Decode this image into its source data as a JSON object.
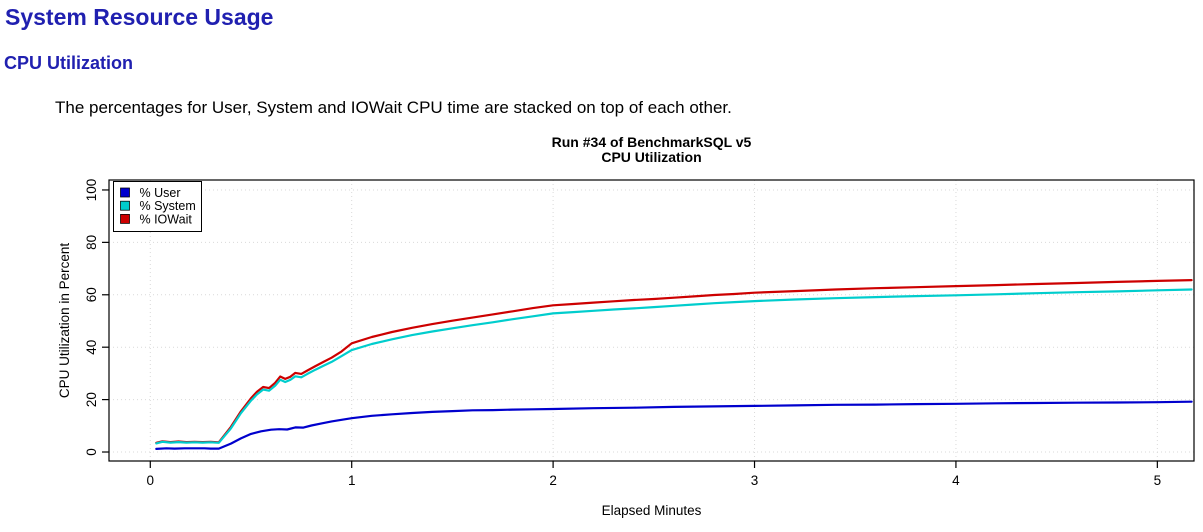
{
  "page": {
    "heading1": "System Resource Usage",
    "heading2": "CPU Utilization",
    "description": "The percentages for User, System and IOWait CPU time are stacked on top of each other.",
    "heading_color": "#2020b0"
  },
  "chart_data": {
    "type": "line",
    "title": "Run #34 of BenchmarkSQL v5",
    "subtitle": "CPU Utilization",
    "xlabel": "Elapsed Minutes",
    "ylabel": "CPU Utilization in Percent",
    "x_ticks": [
      0,
      1,
      2,
      3,
      4,
      5
    ],
    "y_ticks": [
      0,
      20,
      40,
      60,
      80,
      100
    ],
    "xlim": [
      -0.205,
      5.182
    ],
    "ylim": [
      -3.43,
      103.8
    ],
    "grid": {
      "show": true,
      "style": "dotted",
      "color": "#d9d9d9"
    },
    "axis_color": "#000000",
    "legend": {
      "position": "top-left",
      "entries": [
        {
          "label": "% User",
          "color": "#0000CD"
        },
        {
          "label": "% System",
          "color": "#00CDCD"
        },
        {
          "label": "% IOWait",
          "color": "#CD0000"
        }
      ]
    },
    "series": [
      {
        "name": "% User",
        "color": "#0000CD",
        "points": [
          [
            0.03,
            1.2
          ],
          [
            0.08,
            1.4
          ],
          [
            0.12,
            1.3
          ],
          [
            0.17,
            1.4
          ],
          [
            0.22,
            1.4
          ],
          [
            0.27,
            1.4
          ],
          [
            0.3,
            1.3
          ],
          [
            0.34,
            1.3
          ],
          [
            0.4,
            3.2
          ],
          [
            0.45,
            5.2
          ],
          [
            0.5,
            6.9
          ],
          [
            0.55,
            7.9
          ],
          [
            0.6,
            8.5
          ],
          [
            0.64,
            8.7
          ],
          [
            0.68,
            8.6
          ],
          [
            0.72,
            9.4
          ],
          [
            0.76,
            9.3
          ],
          [
            0.8,
            10.1
          ],
          [
            0.85,
            10.9
          ],
          [
            0.9,
            11.7
          ],
          [
            0.95,
            12.3
          ],
          [
            1.0,
            12.9
          ],
          [
            1.1,
            13.8
          ],
          [
            1.2,
            14.4
          ],
          [
            1.3,
            14.9
          ],
          [
            1.4,
            15.3
          ],
          [
            1.5,
            15.6
          ],
          [
            1.6,
            15.9
          ],
          [
            1.7,
            16.0
          ],
          [
            1.8,
            16.2
          ],
          [
            1.9,
            16.3
          ],
          [
            2.0,
            16.4
          ],
          [
            2.2,
            16.7
          ],
          [
            2.4,
            16.9
          ],
          [
            2.6,
            17.2
          ],
          [
            2.8,
            17.4
          ],
          [
            3.0,
            17.6
          ],
          [
            3.2,
            17.8
          ],
          [
            3.4,
            18.0
          ],
          [
            3.6,
            18.1
          ],
          [
            3.8,
            18.3
          ],
          [
            4.0,
            18.4
          ],
          [
            4.2,
            18.6
          ],
          [
            4.4,
            18.7
          ],
          [
            4.6,
            18.8
          ],
          [
            4.8,
            18.9
          ],
          [
            5.0,
            19.0
          ],
          [
            5.17,
            19.2
          ]
        ]
      },
      {
        "name": "% IOWait",
        "color": "#CD0000",
        "points": [
          [
            0.03,
            3.5
          ],
          [
            0.06,
            4.1
          ],
          [
            0.1,
            3.8
          ],
          [
            0.14,
            4.0
          ],
          [
            0.18,
            3.8
          ],
          [
            0.22,
            3.9
          ],
          [
            0.26,
            3.8
          ],
          [
            0.3,
            3.9
          ],
          [
            0.34,
            3.7
          ],
          [
            0.4,
            9.6
          ],
          [
            0.45,
            15.5
          ],
          [
            0.5,
            20.5
          ],
          [
            0.53,
            23.0
          ],
          [
            0.56,
            24.8
          ],
          [
            0.59,
            24.4
          ],
          [
            0.62,
            26.4
          ],
          [
            0.645,
            28.8
          ],
          [
            0.67,
            27.9
          ],
          [
            0.695,
            28.7
          ],
          [
            0.72,
            30.2
          ],
          [
            0.75,
            29.8
          ],
          [
            0.78,
            31.1
          ],
          [
            0.82,
            32.8
          ],
          [
            0.86,
            34.4
          ],
          [
            0.9,
            36.0
          ],
          [
            0.95,
            38.4
          ],
          [
            1.0,
            41.5
          ],
          [
            1.1,
            43.9
          ],
          [
            1.2,
            45.8
          ],
          [
            1.3,
            47.4
          ],
          [
            1.4,
            48.8
          ],
          [
            1.5,
            50.1
          ],
          [
            1.6,
            51.3
          ],
          [
            1.7,
            52.5
          ],
          [
            1.8,
            53.7
          ],
          [
            1.9,
            54.9
          ],
          [
            2.0,
            56.0
          ],
          [
            2.1,
            56.5
          ],
          [
            2.2,
            57.0
          ],
          [
            2.3,
            57.5
          ],
          [
            2.4,
            58.0
          ],
          [
            2.5,
            58.4
          ],
          [
            2.6,
            58.9
          ],
          [
            2.7,
            59.4
          ],
          [
            2.8,
            59.9
          ],
          [
            2.9,
            60.3
          ],
          [
            3.0,
            60.8
          ],
          [
            3.2,
            61.4
          ],
          [
            3.4,
            62.0
          ],
          [
            3.6,
            62.5
          ],
          [
            3.8,
            62.9
          ],
          [
            4.0,
            63.3
          ],
          [
            4.2,
            63.7
          ],
          [
            4.4,
            64.1
          ],
          [
            4.6,
            64.5
          ],
          [
            4.8,
            64.9
          ],
          [
            5.0,
            65.3
          ],
          [
            5.17,
            65.6
          ]
        ]
      },
      {
        "name": "% System",
        "color": "#00CDCD",
        "points": [
          [
            0.03,
            3.3
          ],
          [
            0.06,
            3.9
          ],
          [
            0.1,
            3.6
          ],
          [
            0.14,
            3.8
          ],
          [
            0.18,
            3.6
          ],
          [
            0.22,
            3.7
          ],
          [
            0.26,
            3.6
          ],
          [
            0.3,
            3.7
          ],
          [
            0.34,
            3.5
          ],
          [
            0.4,
            9.0
          ],
          [
            0.45,
            14.8
          ],
          [
            0.5,
            19.6
          ],
          [
            0.53,
            22.0
          ],
          [
            0.56,
            23.8
          ],
          [
            0.59,
            23.4
          ],
          [
            0.62,
            25.3
          ],
          [
            0.645,
            27.6
          ],
          [
            0.67,
            26.7
          ],
          [
            0.695,
            27.5
          ],
          [
            0.72,
            28.9
          ],
          [
            0.75,
            28.5
          ],
          [
            0.78,
            29.8
          ],
          [
            0.82,
            31.4
          ],
          [
            0.86,
            32.9
          ],
          [
            0.9,
            34.4
          ],
          [
            0.95,
            36.6
          ],
          [
            1.0,
            38.9
          ],
          [
            1.1,
            41.2
          ],
          [
            1.2,
            43.0
          ],
          [
            1.3,
            44.6
          ],
          [
            1.4,
            46.0
          ],
          [
            1.5,
            47.2
          ],
          [
            1.6,
            48.4
          ],
          [
            1.7,
            49.5
          ],
          [
            1.8,
            50.7
          ],
          [
            1.9,
            51.8
          ],
          [
            2.0,
            52.9
          ],
          [
            2.1,
            53.4
          ],
          [
            2.2,
            53.9
          ],
          [
            2.3,
            54.4
          ],
          [
            2.4,
            54.8
          ],
          [
            2.5,
            55.3
          ],
          [
            2.6,
            55.8
          ],
          [
            2.7,
            56.3
          ],
          [
            2.8,
            56.8
          ],
          [
            2.9,
            57.2
          ],
          [
            3.0,
            57.6
          ],
          [
            3.2,
            58.2
          ],
          [
            3.4,
            58.7
          ],
          [
            3.6,
            59.1
          ],
          [
            3.8,
            59.5
          ],
          [
            4.0,
            59.8
          ],
          [
            4.2,
            60.2
          ],
          [
            4.4,
            60.6
          ],
          [
            4.6,
            61.0
          ],
          [
            4.8,
            61.3
          ],
          [
            5.0,
            61.7
          ],
          [
            5.17,
            62.0
          ]
        ]
      }
    ]
  }
}
